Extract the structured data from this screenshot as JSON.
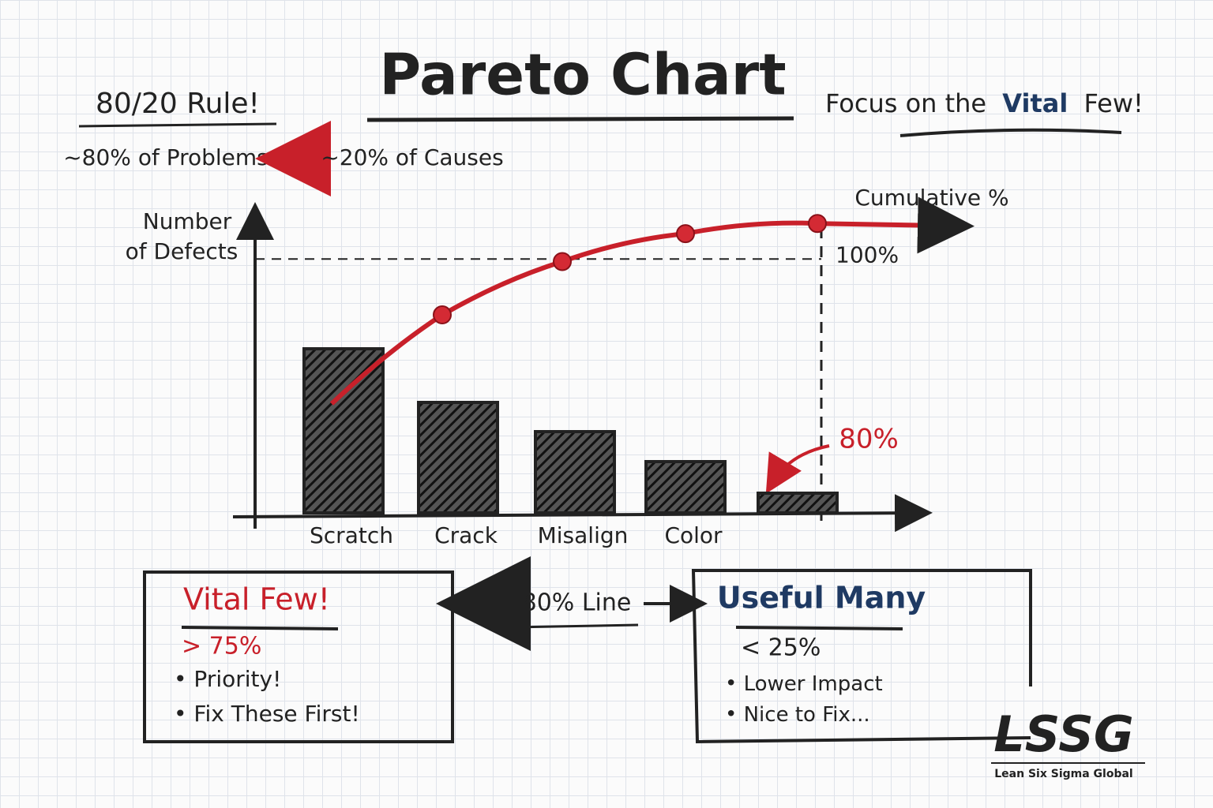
{
  "chart_data": {
    "type": "bar",
    "title": "Pareto Chart",
    "y_label": [
      "Number",
      "of Defects"
    ],
    "y2_label": "Cumulative %",
    "categories": [
      "Scratch",
      "Crack",
      "Misalign",
      "Color",
      null
    ],
    "values": [
      208,
      140,
      103,
      65,
      25
    ],
    "color": "#222222",
    "ylim": [
      0,
      370
    ],
    "cumulative": {
      "axis": "y2",
      "color": "#c8202a",
      "values": [
        43,
        78,
        99,
        110,
        114
      ]
    },
    "y2lim": [
      0,
      115
    ],
    "y2ticks": [
      {
        "value": 100,
        "label": "100%"
      }
    ],
    "annotation": "80%"
  },
  "rule": {
    "title": "80/20 Rule!",
    "problems": "~80% of Problems",
    "causes": "~20% of Causes"
  },
  "tagline": {
    "start": "Focus on the",
    "highlight": "Vital",
    "end": "Few!"
  },
  "vital_few": {
    "title": "Vital Few!",
    "share": "> 75%",
    "items": [
      "Priority!",
      "Fix These First!"
    ]
  },
  "divider": "80% Line",
  "useful_many": {
    "title": "Useful Many",
    "share": "< 25%",
    "items": [
      "Lower Impact",
      "Nice to Fix..."
    ]
  },
  "logo": {
    "mark": "LSSG",
    "name": "Lean Six Sigma Global"
  }
}
